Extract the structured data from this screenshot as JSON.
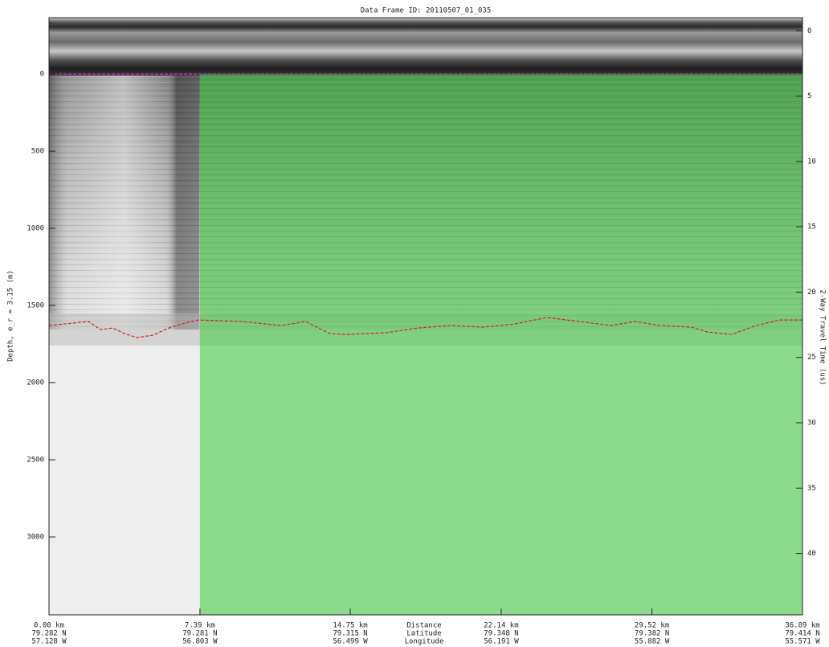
{
  "chart_data": {
    "type": "radargram",
    "title": "Data Frame ID: 20110507_01_035",
    "ylabel": "Depth, e_r = 3.15 (m)",
    "y2label": "2-Way Travel Time (us)",
    "xlim": [
      0,
      36.89
    ],
    "ylim": [
      3505,
      -365
    ],
    "y2lim": [
      44.7,
      -1
    ],
    "xticks": [
      {
        "value": 0,
        "label": "0.00 km"
      },
      {
        "value": 7.39,
        "label": "7.39 km"
      },
      {
        "value": 14.75,
        "label": "14.75 km"
      },
      {
        "value": 22.14,
        "label": "22.14 km"
      },
      {
        "value": 29.52,
        "label": "29.52 km"
      },
      {
        "value": 36.89,
        "label": "36.89 km"
      }
    ],
    "xtick_latitudes": [
      "79.282 N",
      "79.281 N",
      "79.315 N",
      "79.348 N",
      "79.382 N",
      "79.414 N"
    ],
    "xtick_longitudes": [
      "57.128 W",
      "56.803 W",
      "56.499 W",
      "56.191 W",
      "55.882 W",
      "55.571 W"
    ],
    "x_label_names": [
      "Distance",
      "Latitude",
      "Longitude"
    ],
    "yticks": [
      0,
      500,
      1000,
      1500,
      2000,
      2500,
      3000
    ],
    "y2ticks": [
      0,
      5,
      10,
      15,
      20,
      25,
      30,
      35,
      40
    ],
    "highlight": {
      "x": [
        7.39,
        36.89
      ],
      "color": "#3ccc3c"
    },
    "series": [
      {
        "color": "#cc33cc",
        "x": [
          0,
          36.89
        ],
        "values": [
          0,
          0
        ]
      },
      {
        "color": "#d62020",
        "x": [
          0,
          1.14,
          1.93,
          2.52,
          3.11,
          3.7,
          4.29,
          5.08,
          5.87,
          6.65,
          7.32,
          9.41,
          11.38,
          12.56,
          13.74,
          14.53,
          16.5,
          18.07,
          19.65,
          21.22,
          22.8,
          24.37,
          25.95,
          27.52,
          28.7,
          29.88,
          31.46,
          32.24,
          33.42,
          34.61,
          35.79,
          36.89
        ],
        "values": [
          1630,
          1615,
          1604,
          1656,
          1646,
          1682,
          1708,
          1693,
          1646,
          1615,
          1594,
          1604,
          1630,
          1604,
          1682,
          1688,
          1677,
          1646,
          1630,
          1641,
          1620,
          1578,
          1604,
          1630,
          1604,
          1630,
          1641,
          1672,
          1688,
          1630,
          1594,
          1594
        ]
      }
    ]
  }
}
